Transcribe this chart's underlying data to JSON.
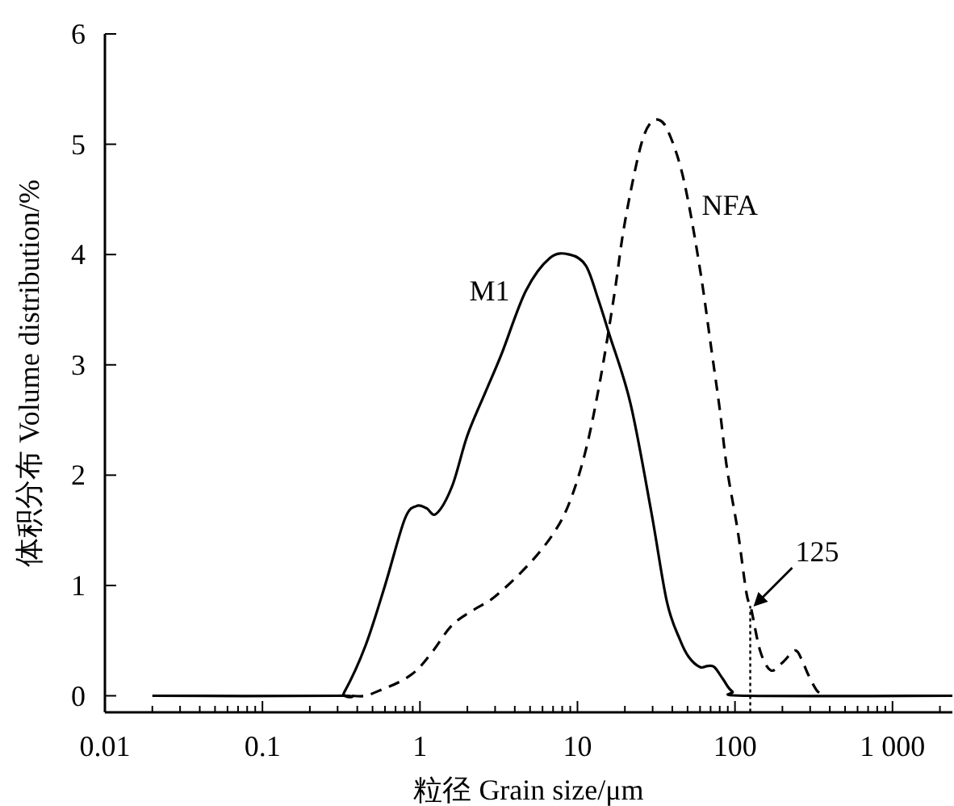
{
  "chart_data": {
    "type": "line",
    "xlabel": "粒径 Grain size/μm",
    "ylabel": "体积分布 Volume distribution/%",
    "log": "x",
    "xlim": [
      0.01,
      2400
    ],
    "ylim": [
      -0.15,
      6
    ],
    "xticks": [
      0.01,
      0.1,
      1,
      10,
      100,
      {
        "value": 1000,
        "label": "1 000"
      }
    ],
    "yticks": [
      0,
      1,
      2,
      3,
      4,
      5,
      6
    ],
    "grid": false,
    "marker": "none",
    "series": [
      {
        "name": "M1",
        "color": "#000000",
        "line_style": "solid",
        "x": [
          0.02,
          0.3,
          0.33,
          0.45,
          0.6,
          0.8,
          0.95,
          1.1,
          1.27,
          1.6,
          2.0,
          2.6,
          3.3,
          4.7,
          6.7,
          8.9,
          11.3,
          13.5,
          15.9,
          21.7,
          29.4,
          37,
          45,
          51,
          60,
          67,
          74,
          84,
          96,
          121,
          2400
        ],
        "values": [
          0,
          0,
          0.03,
          0.45,
          1.0,
          1.6,
          1.72,
          1.7,
          1.65,
          1.9,
          2.36,
          2.75,
          3.1,
          3.67,
          3.97,
          4.0,
          3.9,
          3.6,
          3.28,
          2.65,
          1.67,
          0.85,
          0.5,
          0.35,
          0.26,
          0.27,
          0.26,
          0.15,
          0.04,
          0,
          0
        ]
      },
      {
        "name": "NFA",
        "color": "#000000",
        "line_style": "dashed",
        "x": [
          0.37,
          0.45,
          0.58,
          0.75,
          0.95,
          1.2,
          1.6,
          2.2,
          3.0,
          4.9,
          7.1,
          9.0,
          11.4,
          14.1,
          17.1,
          19.5,
          22.7,
          26,
          29.4,
          33,
          37,
          44,
          51,
          61,
          71,
          80,
          89,
          104,
          118,
          127,
          145,
          169,
          200,
          240,
          265,
          290,
          330,
          370
        ],
        "values": [
          0,
          0,
          0.06,
          0.13,
          0.23,
          0.4,
          0.64,
          0.78,
          0.9,
          1.19,
          1.48,
          1.77,
          2.25,
          2.9,
          3.63,
          4.2,
          4.7,
          5.05,
          5.2,
          5.22,
          5.14,
          4.85,
          4.45,
          3.8,
          3.13,
          2.6,
          2.06,
          1.5,
          0.94,
          0.78,
          0.4,
          0.23,
          0.3,
          0.41,
          0.33,
          0.2,
          0.05,
          0
        ]
      }
    ],
    "ref_lines": [
      {
        "axis": "x",
        "value": 125,
        "line_style": "dotted",
        "color": "#000000"
      }
    ],
    "annotations": [
      {
        "text": "125",
        "x": 125,
        "y": 0.78
      }
    ]
  }
}
